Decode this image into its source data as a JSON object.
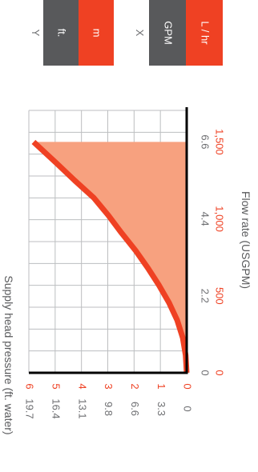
{
  "colors": {
    "accent": "#ef4123",
    "fill": "#f7a17f",
    "toggle_inactive": "#58595b",
    "grid": "#bcbec0",
    "axis": "#000000",
    "text_gray": "#6d6e71"
  },
  "toggles": {
    "y": {
      "label": "Y",
      "options": [
        "ft.",
        "m"
      ],
      "selected": "m"
    },
    "x": {
      "label": "X",
      "options": [
        "GPM",
        "L / hr"
      ],
      "selected": "L / hr"
    }
  },
  "chart_data": {
    "type": "area",
    "orientation": "rotated 90 degrees clockwise (x axis along screen vertical)",
    "xlabel": "Flow rate (USGPM)",
    "ylabel": "Supply head pressure (ft. water)",
    "x_ticks_primary": [
      "0",
      "2.2",
      "4.4",
      "6.6"
    ],
    "x_ticks_primary_values": [
      0,
      2.2,
      4.4,
      6.6
    ],
    "x_ticks_secondary": [
      "0",
      "500",
      "1,000",
      "1,500"
    ],
    "y_ticks_primary": [
      "0",
      "3.3",
      "6.6",
      "9.8",
      "13.1",
      "16.4",
      "19.7"
    ],
    "y_ticks_secondary": [
      "0",
      "1",
      "2",
      "3",
      "4",
      "5",
      "6"
    ],
    "xlim": [
      0,
      7.5
    ],
    "ylim": [
      0,
      6
    ],
    "y_unit_shown": "m",
    "series": [
      {
        "x": [
          0,
          0.5,
          1.0,
          1.5,
          2.0,
          2.5,
          3.0,
          3.5,
          4.0,
          4.5,
          5.0,
          5.5,
          6.0,
          6.6
        ],
        "values": [
          0,
          0.04,
          0.15,
          0.36,
          0.67,
          1.05,
          1.48,
          1.95,
          2.48,
          2.98,
          3.53,
          4.26,
          4.96,
          5.82
        ]
      }
    ],
    "grid": true
  }
}
